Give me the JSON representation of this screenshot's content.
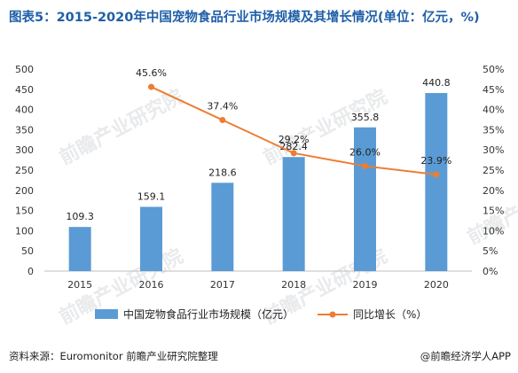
{
  "title": "图表5：2015-2020年中国宠物食品行业市场规模及其增长情况(单位：亿元，%)",
  "source": "资料来源：Euromonitor 前瞻产业研究院整理",
  "brand": "@前瞻经济学人APP",
  "watermark": "前瞻产业研究院",
  "chart_data": {
    "type": "bar",
    "categories": [
      "2015",
      "2016",
      "2017",
      "2018",
      "2019",
      "2020"
    ],
    "series": [
      {
        "name": "中国宠物食品行业市场规模（亿元）",
        "type": "bar",
        "axis": "left",
        "color": "#5b9bd5",
        "values": [
          109.3,
          159.1,
          218.6,
          282.4,
          355.8,
          440.8
        ],
        "labels": [
          "109.3",
          "159.1",
          "218.6",
          "282.4",
          "355.8",
          "440.8"
        ]
      },
      {
        "name": "同比增长（%）",
        "type": "line",
        "axis": "right",
        "color": "#ed7d31",
        "x": [
          "2016",
          "2017",
          "2018",
          "2019",
          "2020"
        ],
        "values": [
          45.6,
          37.4,
          29.2,
          26.0,
          23.9
        ],
        "labels": [
          "45.6%",
          "37.4%",
          "29.2%",
          "26.0%",
          "23.9%"
        ]
      }
    ],
    "y_left": {
      "ylim": [
        0,
        500
      ],
      "ticks": [
        "0",
        "50",
        "100",
        "150",
        "200",
        "250",
        "300",
        "350",
        "400",
        "450",
        "500"
      ]
    },
    "y_right": {
      "ylim": [
        0,
        50
      ],
      "ticks": [
        "0%",
        "5%",
        "10%",
        "15%",
        "20%",
        "25%",
        "30%",
        "35%",
        "40%",
        "45%",
        "50%"
      ]
    },
    "grid": false,
    "legend_position": "bottom"
  }
}
